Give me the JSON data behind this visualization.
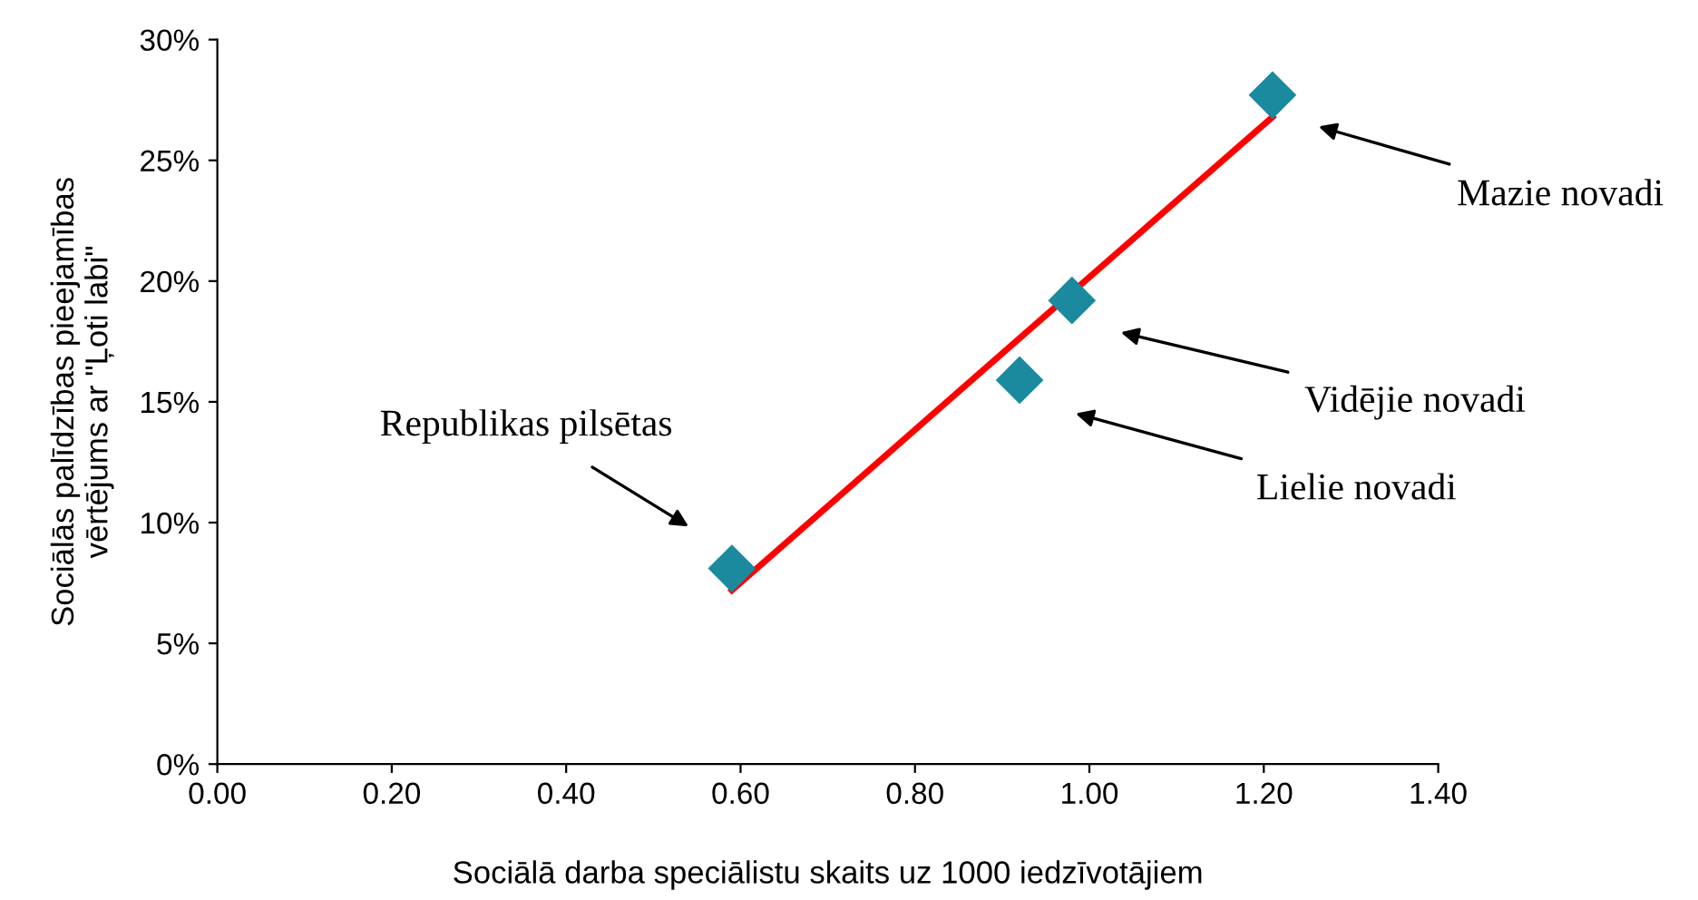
{
  "chart_data": {
    "type": "scatter",
    "xlabel": "Sociālā darba speciālistu skaits uz 1000 iedzīvotājiem",
    "ylabel": "Sociālās palīdzības pieejamības\nvērtējums ar \"Ļoti labi\"",
    "series": [
      {
        "type": "scatter",
        "x": [
          0.59,
          0.92,
          0.98,
          1.21
        ],
        "values": [
          8.1,
          15.9,
          19.2,
          27.7
        ],
        "color": "#1b8a9e",
        "marker": "diamond"
      },
      {
        "type": "line",
        "x": [
          0.59,
          1.21
        ],
        "values": [
          7.2,
          26.8
        ],
        "color": "#ff0000",
        "marker": "none",
        "line_style": "solid"
      }
    ],
    "xlim": [
      0,
      1.4
    ],
    "xticks": [
      {
        "value": 0,
        "label": "0.00"
      },
      {
        "value": 0.2,
        "label": "0.20"
      },
      {
        "value": 0.4,
        "label": "0.40"
      },
      {
        "value": 0.6,
        "label": "0.60"
      },
      {
        "value": 0.8,
        "label": "0.80"
      },
      {
        "value": 1.0,
        "label": "1.00"
      },
      {
        "value": 1.2,
        "label": "1.20"
      },
      {
        "value": 1.4,
        "label": "1.40"
      }
    ],
    "ylim": [
      0,
      30
    ],
    "yticks": [
      {
        "value": 0,
        "label": "0%"
      },
      {
        "value": 5,
        "label": "5%"
      },
      {
        "value": 10,
        "label": "10%"
      },
      {
        "value": 15,
        "label": "15%"
      },
      {
        "value": 20,
        "label": "20%"
      },
      {
        "value": 25,
        "label": "25%"
      },
      {
        "value": 30,
        "label": "30%"
      }
    ],
    "grid": false,
    "legend": false,
    "annotations": [
      "Republikas pilsētas",
      "Lielie novadi",
      "Vidējie novadi",
      "Mazie novadi"
    ]
  }
}
